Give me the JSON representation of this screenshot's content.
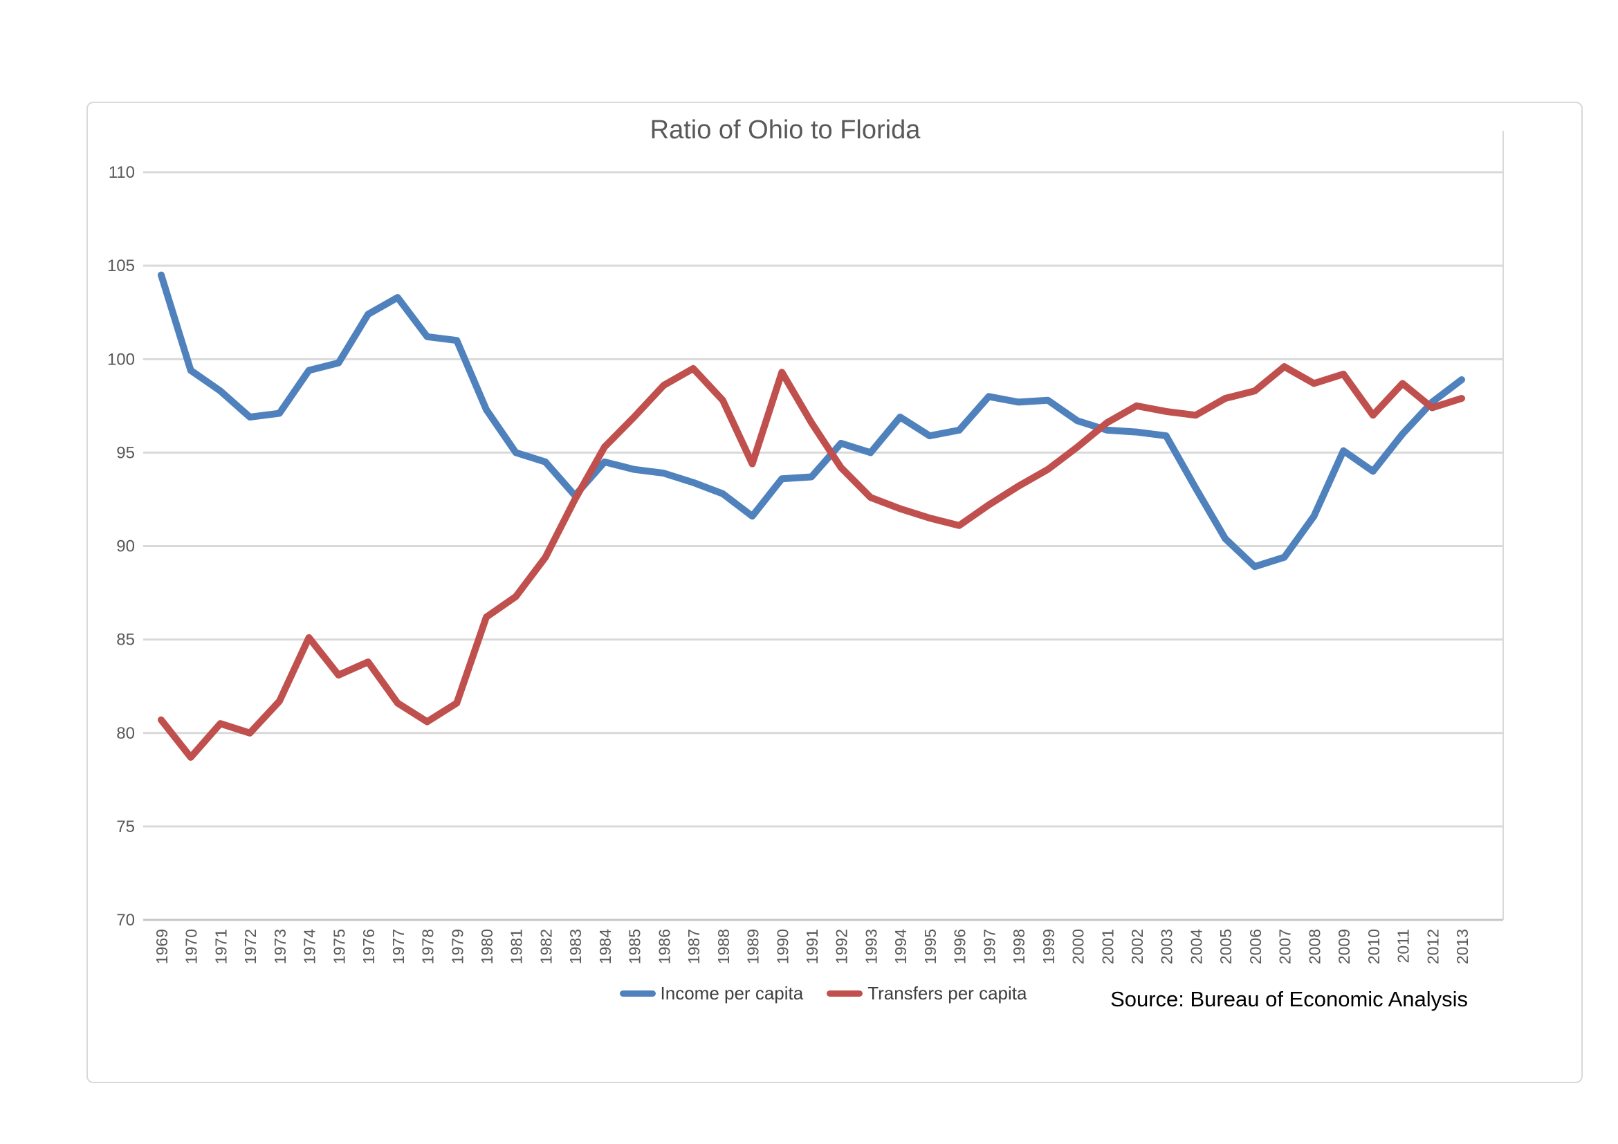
{
  "chart": {
    "background_color": "#ffffff",
    "frame_border_color": "#d9d9d9",
    "gridline_color": "#d9d9d9",
    "axis_line_color": "#c6c6c6",
    "tick_label_color": "#595959",
    "title_color": "#595959",
    "legend_text_color": "#3f3f3f",
    "source_text_color": "#000000"
  },
  "chart_data": {
    "type": "line",
    "title": "Ratio of Ohio to Florida",
    "source_note": "Source: Bureau of Economic Analysis",
    "xlabel": "",
    "ylabel": "",
    "ylim": [
      70,
      110
    ],
    "ytick_step": 5,
    "grid": true,
    "legend_position": "bottom-center",
    "categories": [
      1969,
      1970,
      1971,
      1972,
      1973,
      1974,
      1975,
      1976,
      1977,
      1978,
      1979,
      1980,
      1981,
      1982,
      1983,
      1984,
      1985,
      1986,
      1987,
      1988,
      1989,
      1990,
      1991,
      1992,
      1993,
      1994,
      1995,
      1996,
      1997,
      1998,
      1999,
      2000,
      2001,
      2002,
      2003,
      2004,
      2005,
      2006,
      2007,
      2008,
      2009,
      2010,
      2011,
      2012,
      2013
    ],
    "series": [
      {
        "name": "Income per capita",
        "color": "#4F81BD",
        "values": [
          104.5,
          99.4,
          98.3,
          96.9,
          97.1,
          99.4,
          99.8,
          102.4,
          103.3,
          101.2,
          101.0,
          97.3,
          95.0,
          94.5,
          92.7,
          94.5,
          94.1,
          93.9,
          93.4,
          92.8,
          91.6,
          93.6,
          93.7,
          95.5,
          95.0,
          96.9,
          95.9,
          96.2,
          98.0,
          97.7,
          97.8,
          96.7,
          96.2,
          96.1,
          95.9,
          93.1,
          90.4,
          88.9,
          89.4,
          91.6,
          95.1,
          94.0,
          96.0,
          97.7,
          98.9
        ]
      },
      {
        "name": "Transfers per capita",
        "color": "#C0504D",
        "values": [
          80.7,
          78.7,
          80.5,
          80.0,
          81.7,
          85.1,
          83.1,
          83.8,
          81.6,
          80.6,
          81.6,
          86.2,
          87.3,
          89.4,
          92.5,
          95.3,
          96.9,
          98.6,
          99.5,
          97.8,
          94.4,
          99.3,
          96.6,
          94.2,
          92.6,
          92.0,
          91.5,
          91.1,
          92.2,
          93.2,
          94.1,
          95.3,
          96.6,
          97.5,
          97.2,
          97.0,
          97.9,
          98.3,
          99.6,
          98.7,
          99.2,
          97.0,
          98.7,
          97.4,
          97.9
        ]
      }
    ]
  }
}
